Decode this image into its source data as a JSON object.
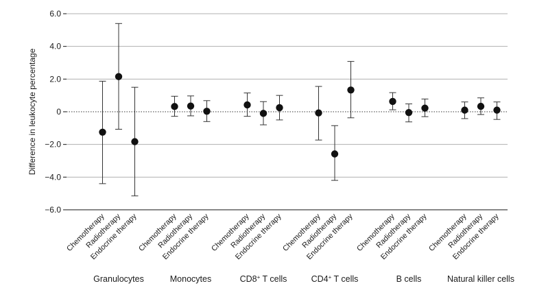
{
  "chart_data": {
    "type": "scatter",
    "ylabel": "Difference in leukocyte percentage",
    "ylim": [
      -6.0,
      6.0
    ],
    "yticks": [
      6.0,
      4.0,
      2.0,
      0,
      -2.0,
      -4.0,
      -6.0
    ],
    "ytick_labels": [
      "6.0",
      "4.0",
      "2.0",
      "0",
      "−2.0",
      "−4.0",
      "−6.0"
    ],
    "reference_line": 0,
    "grid": true,
    "therapies": [
      "Chemotherapy",
      "Radiotherapy",
      "Endocrine therapy"
    ],
    "groups": [
      {
        "name": "Granulocytes",
        "label_parts": [
          [
            "Granulocytes",
            "normal"
          ]
        ],
        "points": [
          {
            "therapy": "Chemotherapy",
            "estimate": -1.25,
            "lower": -4.4,
            "upper": 1.87
          },
          {
            "therapy": "Radiotherapy",
            "estimate": 2.15,
            "lower": -1.07,
            "upper": 5.4
          },
          {
            "therapy": "Endocrine therapy",
            "estimate": -1.83,
            "lower": -5.15,
            "upper": 1.5
          }
        ]
      },
      {
        "name": "Monocytes",
        "label_parts": [
          [
            "Monocytes",
            "normal"
          ]
        ],
        "points": [
          {
            "therapy": "Chemotherapy",
            "estimate": 0.32,
            "lower": -0.28,
            "upper": 0.95
          },
          {
            "therapy": "Radiotherapy",
            "estimate": 0.35,
            "lower": -0.25,
            "upper": 0.97
          },
          {
            "therapy": "Endocrine therapy",
            "estimate": 0.03,
            "lower": -0.6,
            "upper": 0.68
          }
        ]
      },
      {
        "name": "CD8+ T cells",
        "label_parts": [
          [
            "CD8",
            "normal"
          ],
          [
            "+",
            "sup"
          ],
          [
            " T cells",
            "normal"
          ]
        ],
        "points": [
          {
            "therapy": "Chemotherapy",
            "estimate": 0.42,
            "lower": -0.28,
            "upper": 1.15
          },
          {
            "therapy": "Radiotherapy",
            "estimate": -0.1,
            "lower": -0.8,
            "upper": 0.62
          },
          {
            "therapy": "Endocrine therapy",
            "estimate": 0.25,
            "lower": -0.5,
            "upper": 1.0
          }
        ]
      },
      {
        "name": "CD4+ T cells",
        "label_parts": [
          [
            "CD4",
            "normal"
          ],
          [
            "+",
            "sup"
          ],
          [
            " T cells",
            "normal"
          ]
        ],
        "points": [
          {
            "therapy": "Chemotherapy",
            "estimate": -0.07,
            "lower": -1.73,
            "upper": 1.55
          },
          {
            "therapy": "Radiotherapy",
            "estimate": -2.58,
            "lower": -4.2,
            "upper": -0.85
          },
          {
            "therapy": "Endocrine therapy",
            "estimate": 1.33,
            "lower": -0.37,
            "upper": 3.08
          }
        ]
      },
      {
        "name": "B cells",
        "label_parts": [
          [
            "B cells",
            "normal"
          ]
        ],
        "points": [
          {
            "therapy": "Chemotherapy",
            "estimate": 0.63,
            "lower": 0.12,
            "upper": 1.17
          },
          {
            "therapy": "Radiotherapy",
            "estimate": -0.05,
            "lower": -0.62,
            "upper": 0.48
          },
          {
            "therapy": "Endocrine therapy",
            "estimate": 0.22,
            "lower": -0.3,
            "upper": 0.78
          }
        ]
      },
      {
        "name": "Natural killer cells",
        "label_parts": [
          [
            "Natural killer cells",
            "normal"
          ]
        ],
        "points": [
          {
            "therapy": "Chemotherapy",
            "estimate": 0.1,
            "lower": -0.42,
            "upper": 0.6
          },
          {
            "therapy": "Radiotherapy",
            "estimate": 0.33,
            "lower": -0.17,
            "upper": 0.85
          },
          {
            "therapy": "Endocrine therapy",
            "estimate": 0.1,
            "lower": -0.47,
            "upper": 0.6
          }
        ]
      }
    ]
  },
  "colors": {
    "point": "#111111",
    "errorbar": "#333333",
    "grid": "#b0b0b0",
    "axis": "#111111",
    "reference": "#333333"
  }
}
